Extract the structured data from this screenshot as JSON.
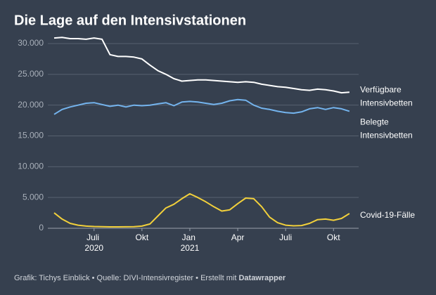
{
  "chart_data": {
    "type": "line",
    "title": "Die Lage auf den Intensivstationen",
    "x": [
      null,
      null,
      null,
      null,
      null,
      "Juli 2020",
      null,
      null,
      null,
      null,
      null,
      "Okt",
      null,
      null,
      null,
      null,
      null,
      "Jan 2021",
      null,
      null,
      null,
      null,
      null,
      "Apr",
      null,
      null,
      null,
      null,
      null,
      "Juli",
      null,
      null,
      null,
      null,
      null,
      "Okt",
      null,
      null
    ],
    "series": [
      {
        "name": "Verfügbare Intensivbetten",
        "color": "#ffffff",
        "values": [
          30900,
          31000,
          30800,
          30800,
          30700,
          30900,
          30700,
          28200,
          27900,
          27900,
          27800,
          27500,
          26500,
          25600,
          25000,
          24300,
          23900,
          24000,
          24100,
          24100,
          24000,
          23900,
          23800,
          23700,
          23800,
          23700,
          23400,
          23200,
          23000,
          22900,
          22700,
          22500,
          22400,
          22600,
          22500,
          22300,
          22000,
          22100
        ]
      },
      {
        "name": "Belegte Intensivbetten",
        "color": "#74b4ee",
        "values": [
          18500,
          19300,
          19700,
          20000,
          20300,
          20400,
          20100,
          19800,
          20000,
          19700,
          20000,
          19900,
          20000,
          20200,
          20400,
          19900,
          20500,
          20600,
          20500,
          20300,
          20100,
          20300,
          20700,
          20900,
          20800,
          20000,
          19500,
          19300,
          19000,
          18800,
          18700,
          18900,
          19400,
          19600,
          19300,
          19600,
          19400,
          19000
        ]
      },
      {
        "name": "Covid-19-Fälle",
        "color": "#f2d03b",
        "values": [
          2500,
          1500,
          800,
          500,
          350,
          280,
          250,
          230,
          230,
          240,
          260,
          350,
          700,
          2000,
          3300,
          3900,
          4800,
          5600,
          5000,
          4300,
          3500,
          2800,
          3000,
          4000,
          4900,
          4800,
          3500,
          1800,
          900,
          500,
          400,
          450,
          800,
          1400,
          1500,
          1300,
          1600,
          2400
        ]
      }
    ],
    "ylim": [
      0,
      30000
    ],
    "yticks": [
      {
        "value": 0,
        "label": "0"
      },
      {
        "value": 5000,
        "label": "5.000"
      },
      {
        "value": 10000,
        "label": "10.000"
      },
      {
        "value": 15000,
        "label": "15.000"
      },
      {
        "value": 20000,
        "label": "20.000"
      },
      {
        "value": 25000,
        "label": "25.000"
      },
      {
        "value": 30000,
        "label": "30.000"
      }
    ],
    "grid": true,
    "source": "Grafik: Tichys Einblick • Quelle: DIVI-Intensivregister • Erstellt mit",
    "source_brand": "Datawrapper"
  }
}
